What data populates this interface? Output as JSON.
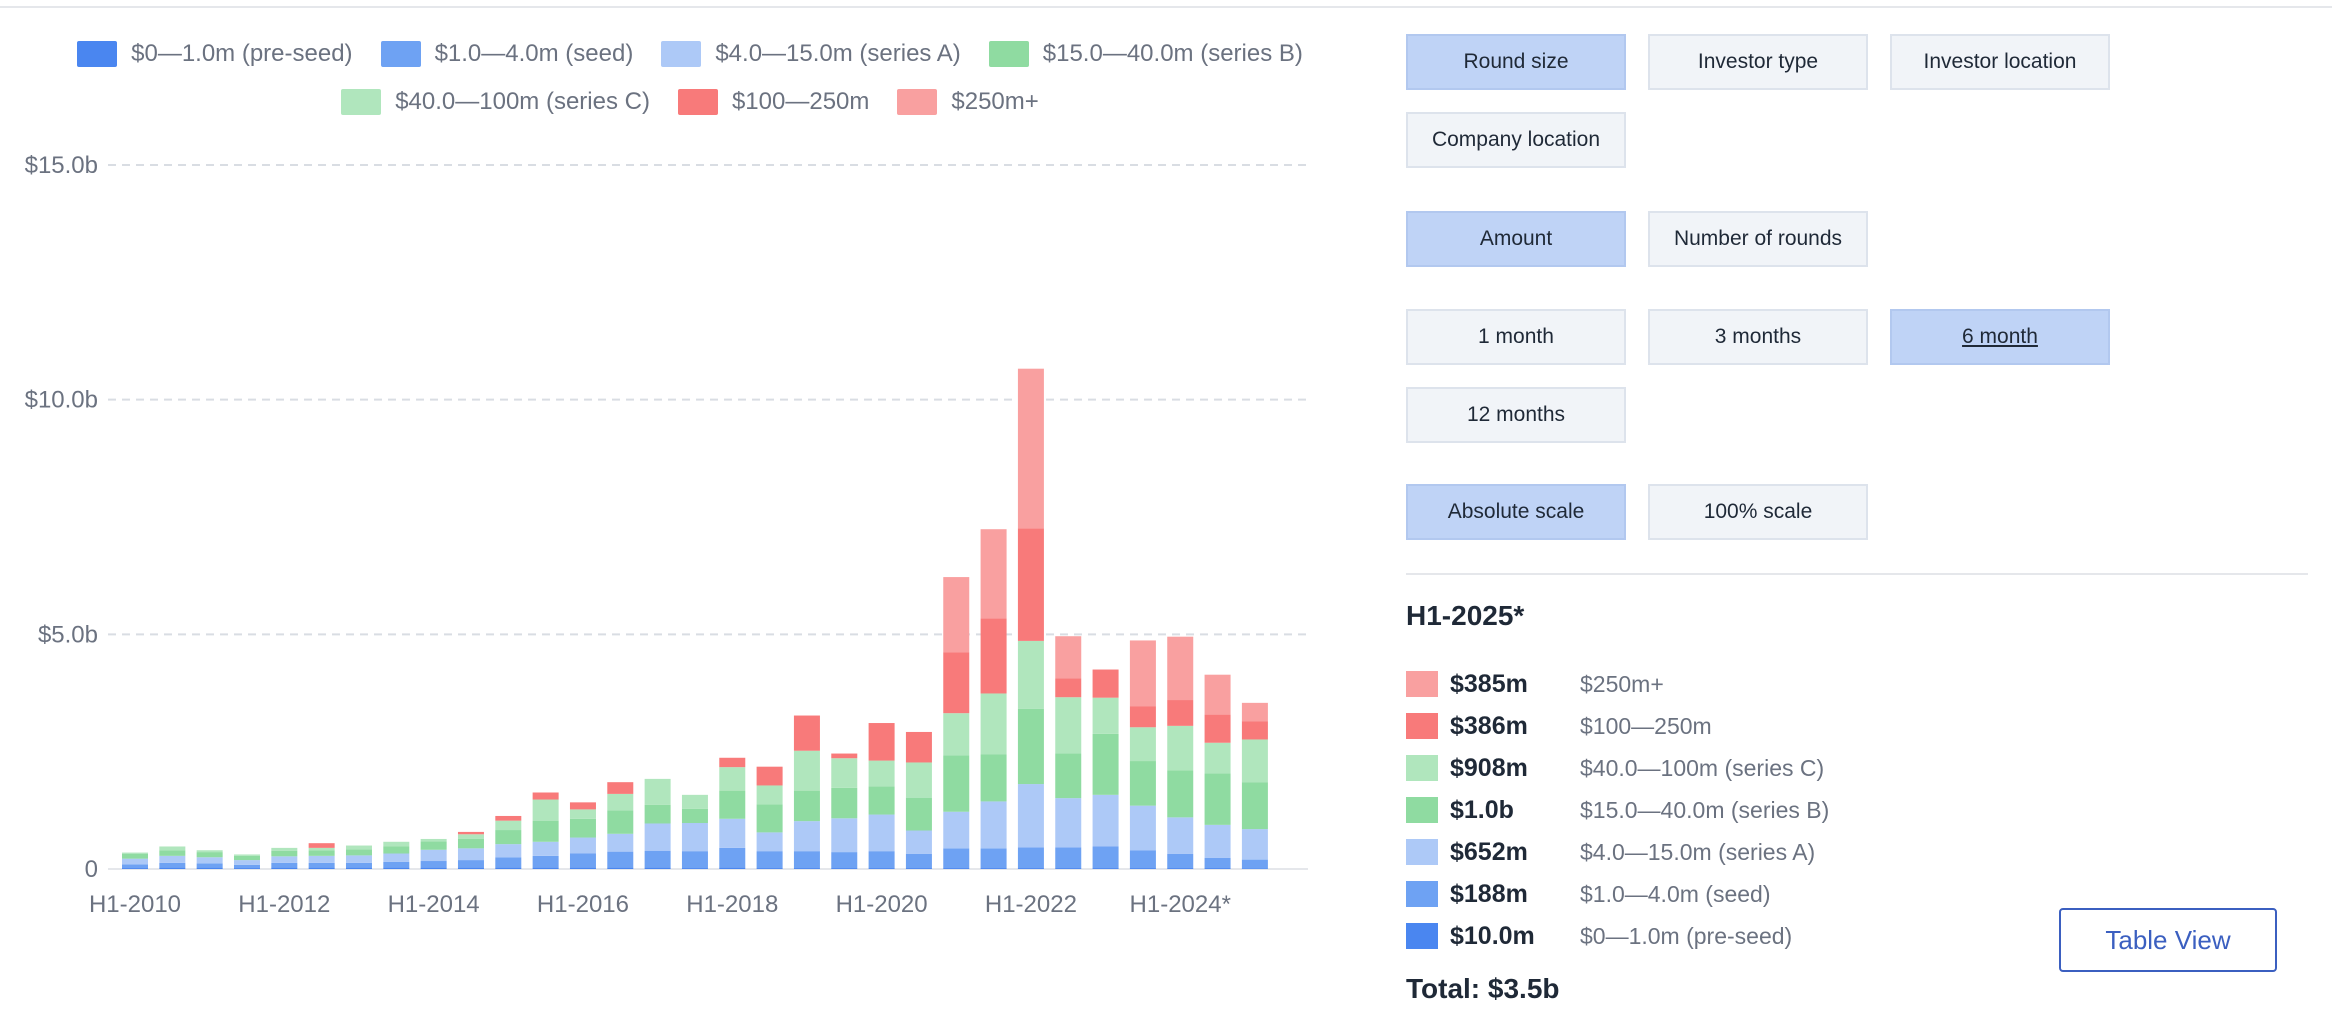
{
  "colors": {
    "pre_seed": "#4a86f0",
    "seed": "#6ea2f3",
    "series_a": "#adc9f7",
    "series_b": "#8fdba1",
    "series_c": "#b0e6bd",
    "r100_250": "#f87a7a",
    "r250plus": "#f9a0a0",
    "grid": "#d9dde3",
    "axis_text": "#6b7280"
  },
  "legend": [
    {
      "label": "$0—1.0m (pre-seed)",
      "color": "#4a86f0"
    },
    {
      "label": "$1.0—4.0m (seed)",
      "color": "#6ea2f3"
    },
    {
      "label": "$4.0—15.0m (series A)",
      "color": "#adc9f7"
    },
    {
      "label": "$15.0—40.0m (series B)",
      "color": "#8fdba1"
    },
    {
      "label": "$40.0—100m (series C)",
      "color": "#b0e6bd"
    },
    {
      "label": "$100—250m",
      "color": "#f87a7a"
    },
    {
      "label": "$250m+",
      "color": "#f9a0a0"
    }
  ],
  "chart_data": {
    "type": "bar",
    "stacked": true,
    "y_ticks": [
      "0",
      "$5.0b",
      "$10.0b",
      "$15.0b"
    ],
    "y_tick_values": [
      0,
      5,
      10,
      15
    ],
    "ylim": [
      0,
      15
    ],
    "unit": "billion USD",
    "x_tick_labels": [
      "H1-2010",
      "H1-2012",
      "H1-2014",
      "H1-2016",
      "H1-2018",
      "H1-2020",
      "H1-2022",
      "H1-2024*"
    ],
    "x_tick_indices": [
      0,
      4,
      8,
      12,
      16,
      20,
      24,
      28
    ],
    "categories": [
      "H1-2010",
      "H2-2010",
      "H1-2011",
      "H2-2011",
      "H1-2012",
      "H2-2012",
      "H1-2013",
      "H2-2013",
      "H1-2014",
      "H2-2014",
      "H1-2015",
      "H2-2015",
      "H1-2016",
      "H2-2016",
      "H1-2017",
      "H2-2017",
      "H1-2018",
      "H2-2018",
      "H1-2019",
      "H2-2019",
      "H1-2020",
      "H2-2020",
      "H1-2021",
      "H2-2021",
      "H1-2022",
      "H2-2022",
      "H1-2023",
      "H2-2023",
      "H1-2024*",
      "H2-2024*",
      "H1-2025*"
    ],
    "series": [
      {
        "name": "$0—1.0m (pre-seed)",
        "values": [
          0.02,
          0.03,
          0.03,
          0.02,
          0.03,
          0.03,
          0.03,
          0.03,
          0.03,
          0.03,
          0.03,
          0.03,
          0.03,
          0.03,
          0.03,
          0.02,
          0.03,
          0.02,
          0.02,
          0.02,
          0.02,
          0.02,
          0.02,
          0.02,
          0.02,
          0.02,
          0.02,
          0.02,
          0.02,
          0.02,
          0.01
        ]
      },
      {
        "name": "$1.0—4.0m (seed)",
        "values": [
          0.08,
          0.1,
          0.09,
          0.07,
          0.1,
          0.1,
          0.1,
          0.12,
          0.14,
          0.16,
          0.22,
          0.25,
          0.3,
          0.34,
          0.36,
          0.36,
          0.42,
          0.36,
          0.36,
          0.34,
          0.36,
          0.3,
          0.42,
          0.42,
          0.44,
          0.44,
          0.46,
          0.38,
          0.3,
          0.22,
          0.19
        ]
      },
      {
        "name": "$4.0—15.0m (series A)",
        "values": [
          0.12,
          0.15,
          0.13,
          0.1,
          0.14,
          0.15,
          0.16,
          0.18,
          0.24,
          0.25,
          0.28,
          0.3,
          0.34,
          0.38,
          0.58,
          0.6,
          0.62,
          0.4,
          0.64,
          0.72,
          0.78,
          0.5,
          0.78,
          1.0,
          1.35,
          1.05,
          1.1,
          0.95,
          0.78,
          0.7,
          0.65
        ]
      },
      {
        "name": "$15.0—40.0m (series B)",
        "values": [
          0.1,
          0.12,
          0.11,
          0.09,
          0.12,
          0.12,
          0.13,
          0.15,
          0.18,
          0.2,
          0.3,
          0.45,
          0.4,
          0.5,
          0.4,
          0.3,
          0.6,
          0.6,
          0.65,
          0.65,
          0.6,
          0.7,
          1.2,
          1.0,
          1.6,
          0.95,
          1.3,
          0.95,
          1.0,
          1.1,
          1.0
        ]
      },
      {
        "name": "$40.0—100m (series C)",
        "values": [
          0.03,
          0.08,
          0.04,
          0.03,
          0.06,
          0.05,
          0.08,
          0.1,
          0.05,
          0.1,
          0.2,
          0.45,
          0.2,
          0.35,
          0.55,
          0.3,
          0.5,
          0.4,
          0.85,
          0.63,
          0.55,
          0.75,
          0.9,
          1.3,
          1.45,
          1.2,
          0.77,
          0.72,
          0.95,
          0.65,
          0.91
        ]
      },
      {
        "name": "$100—250m",
        "values": [
          0,
          0,
          0,
          0,
          0,
          0.1,
          0,
          0,
          0,
          0.05,
          0.1,
          0.15,
          0.15,
          0.25,
          0,
          0,
          0.2,
          0.4,
          0.75,
          0.1,
          0.8,
          0.65,
          1.3,
          1.6,
          2.4,
          0.4,
          0.6,
          0.45,
          0.55,
          0.6,
          0.39
        ]
      },
      {
        "name": "$250m+",
        "values": [
          0,
          0,
          0,
          0,
          0,
          0,
          0,
          0,
          0,
          0,
          0,
          0,
          0,
          0,
          0,
          0,
          0,
          0,
          0,
          0,
          0,
          0,
          1.6,
          1.9,
          3.4,
          0.9,
          0,
          1.4,
          1.35,
          0.85,
          0.39
        ]
      }
    ]
  },
  "controls": {
    "breakdown_buttons": [
      {
        "label": "Round size",
        "active": true
      },
      {
        "label": "Investor type",
        "active": false
      },
      {
        "label": "Investor location",
        "active": false
      },
      {
        "label": "Company location",
        "active": false
      }
    ],
    "metric_buttons": [
      {
        "label": "Amount",
        "active": true
      },
      {
        "label": "Number of rounds",
        "active": false
      }
    ],
    "period_buttons": [
      {
        "label": "1 month",
        "active": false
      },
      {
        "label": "3 months",
        "active": false
      },
      {
        "label": "6 month",
        "active": true
      },
      {
        "label": "12 months",
        "active": false
      }
    ],
    "scale_buttons": [
      {
        "label": "Absolute scale",
        "active": true
      },
      {
        "label": "100% scale",
        "active": false
      }
    ]
  },
  "summary": {
    "period_title": "H1-2025*",
    "rows": [
      {
        "amount": "$385m",
        "label": "$250m+",
        "color": "#f9a0a0"
      },
      {
        "amount": "$386m",
        "label": "$100—250m",
        "color": "#f87a7a"
      },
      {
        "amount": "$908m",
        "label": "$40.0—100m (series C)",
        "color": "#b0e6bd"
      },
      {
        "amount": "$1.0b",
        "label": "$15.0—40.0m (series B)",
        "color": "#8fdba1"
      },
      {
        "amount": "$652m",
        "label": "$4.0—15.0m (series A)",
        "color": "#adc9f7"
      },
      {
        "amount": "$188m",
        "label": "$1.0—4.0m (seed)",
        "color": "#6ea2f3"
      },
      {
        "amount": "$10.0m",
        "label": "$0—1.0m (pre-seed)",
        "color": "#4a86f0"
      }
    ],
    "total": "Total: $3.5b",
    "table_view_label": "Table View"
  }
}
